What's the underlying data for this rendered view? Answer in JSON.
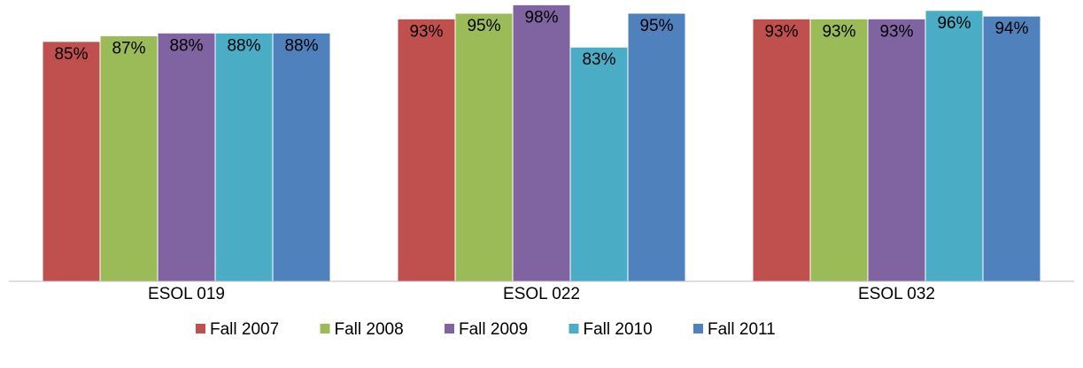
{
  "chart_data": {
    "type": "bar",
    "categories": [
      "ESOL 019",
      "ESOL 022",
      "ESOL 032"
    ],
    "series": [
      {
        "name": "Fall 2007",
        "color": "#c0504d",
        "values": [
          85,
          93,
          93
        ],
        "value_labels": [
          "85%",
          "93%",
          "93%"
        ]
      },
      {
        "name": "Fall 2008",
        "color": "#9bbb59",
        "values": [
          87,
          95,
          93
        ],
        "value_labels": [
          "87%",
          "95%",
          "93%"
        ]
      },
      {
        "name": "Fall 2009",
        "color": "#8064a2",
        "values": [
          88,
          98,
          93
        ],
        "value_labels": [
          "88%",
          "98%",
          "93%"
        ]
      },
      {
        "name": "Fall 2010",
        "color": "#4bacc6",
        "values": [
          88,
          83,
          96
        ],
        "value_labels": [
          "88%",
          "83%",
          "96%"
        ]
      },
      {
        "name": "Fall 2011",
        "color": "#4f81bd",
        "values": [
          88,
          95,
          94
        ],
        "value_labels": [
          "88%",
          "95%",
          "94%"
        ]
      }
    ],
    "ylim": [
      0,
      100
    ],
    "legend": "bottom"
  }
}
